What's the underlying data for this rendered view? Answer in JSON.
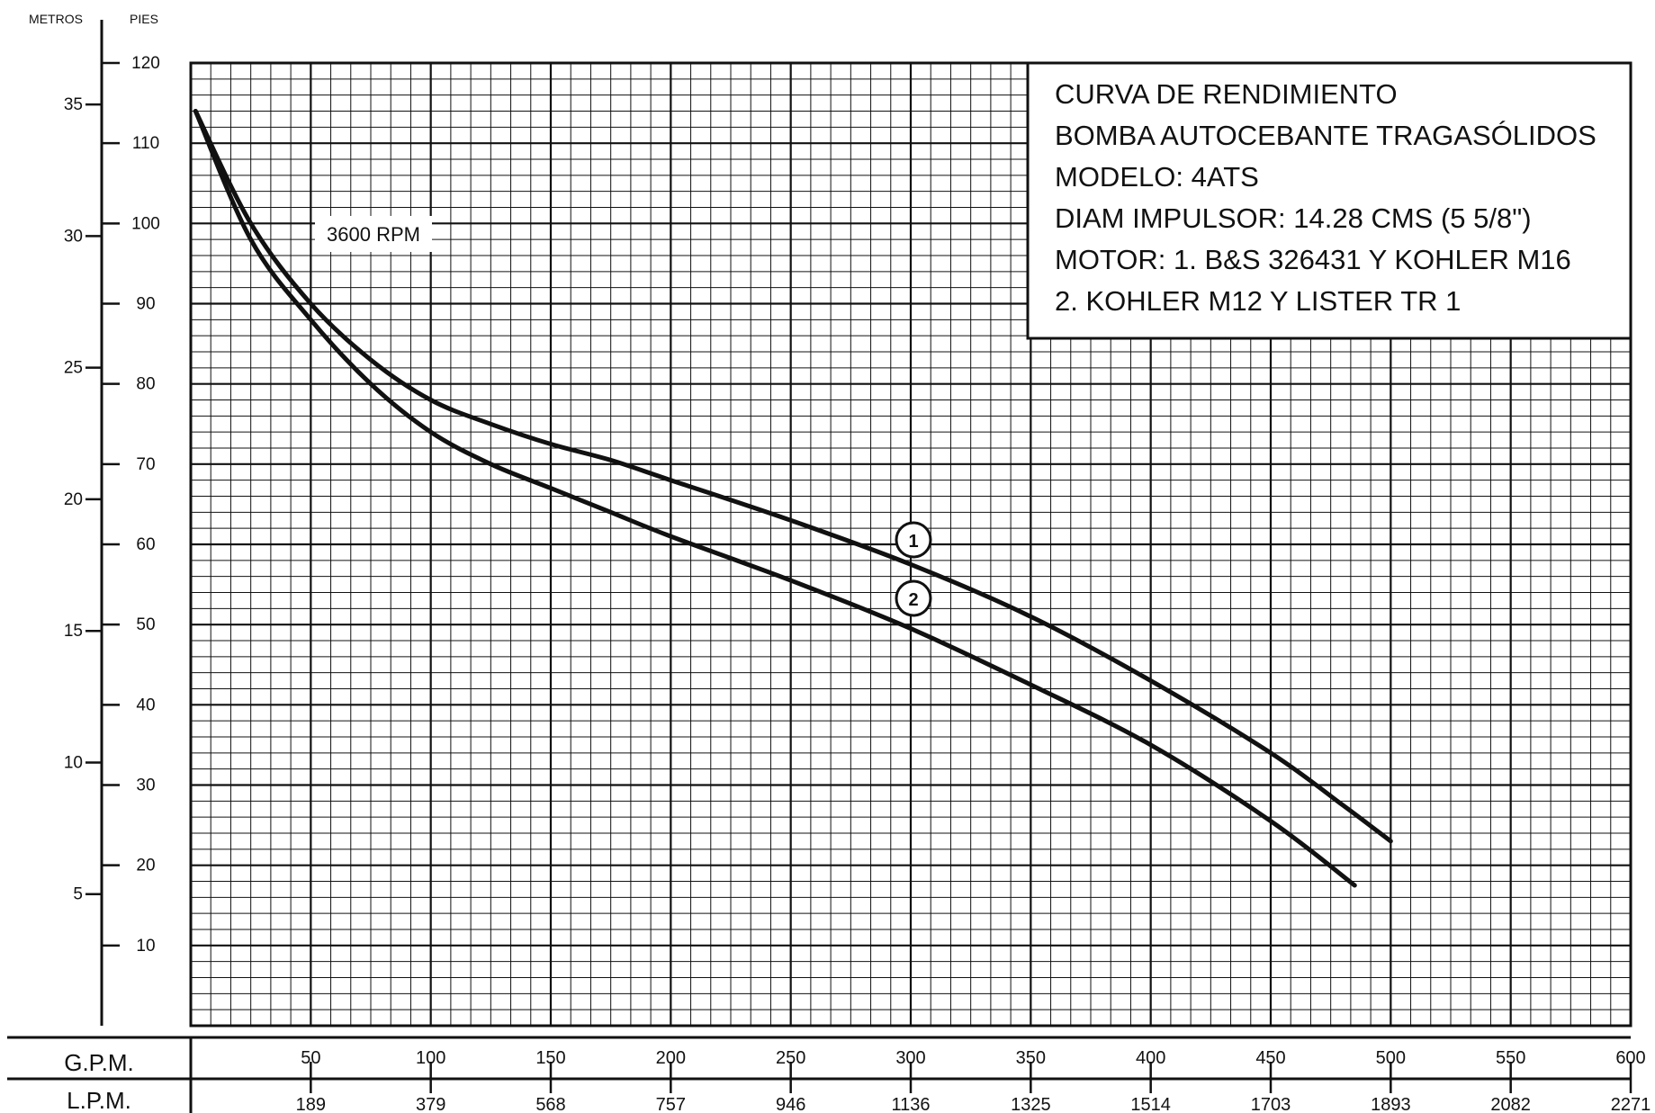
{
  "chart_data": {
    "type": "line",
    "title_lines": [
      "CURVA DE RENDIMIENTO",
      "BOMBA AUTOCEBANTE TRAGASÓLIDOS",
      "MODELO: 4ATS",
      "DIAM IMPULSOR: 14.28 CMS (5 5/8\")",
      "MOTOR: 1. B&S 326431 Y KOHLER M16",
      "2. KOHLER M12 Y LISTER TR 1"
    ],
    "rpm_label": "3600 RPM",
    "left_axis_label": "METROS",
    "right_axis_label": "PIES",
    "x_row1_label": "G.P.M.",
    "x_row2_label": "L.P.M.",
    "x_gpm_ticks": [
      "50",
      "100",
      "150",
      "200",
      "250",
      "300",
      "350",
      "400",
      "450",
      "500",
      "550",
      "600"
    ],
    "x_lpm_ticks": [
      "189",
      "379",
      "568",
      "757",
      "946",
      "1136",
      "1325",
      "1514",
      "1703",
      "1893",
      "2082",
      "2271"
    ],
    "y_metros_ticks": [
      "5",
      "10",
      "15",
      "20",
      "25",
      "30",
      "35"
    ],
    "y_pies_ticks": [
      "10",
      "20",
      "30",
      "40",
      "50",
      "60",
      "70",
      "80",
      "90",
      "100",
      "110",
      "120"
    ],
    "xlim_gpm": [
      0,
      600
    ],
    "ylim_pies": [
      0,
      120
    ],
    "grid": true,
    "series": [
      {
        "name": "1",
        "x": [
          2,
          25,
          50,
          75,
          100,
          125,
          150,
          175,
          200,
          250,
          300,
          350,
          400,
          450,
          480,
          500
        ],
        "y": [
          114,
          100,
          90,
          83,
          78,
          75,
          72.5,
          70.5,
          68,
          63,
          57.5,
          51,
          43,
          34,
          27.5,
          23
        ]
      },
      {
        "name": "2",
        "x": [
          2,
          25,
          50,
          75,
          100,
          125,
          150,
          175,
          200,
          250,
          300,
          350,
          400,
          450,
          485
        ],
        "y": [
          114,
          98,
          88,
          80,
          74,
          70,
          67,
          64,
          61,
          55.5,
          49.5,
          42.5,
          35,
          25.5,
          17.5
        ]
      }
    ]
  }
}
